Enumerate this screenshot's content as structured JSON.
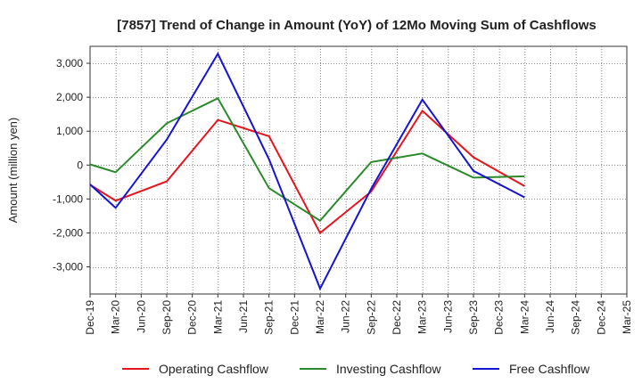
{
  "chart_data": {
    "type": "line",
    "title": "[7857]  Trend of Change in Amount (YoY) of 12Mo Moving Sum of Cashflows",
    "xlabel": "",
    "ylabel": "Amount (million yen)",
    "ylim": [
      -3800,
      3500
    ],
    "yticks": [
      3000,
      2000,
      1000,
      0,
      -1000,
      -2000,
      -3000
    ],
    "ytick_labels": [
      "3,000",
      "2,000",
      "1,000",
      "0",
      "-1,000",
      "-2,000",
      "-3,000"
    ],
    "categories": [
      "Dec-19",
      "Mar-20",
      "Jun-20",
      "Sep-20",
      "Dec-20",
      "Mar-21",
      "Jun-21",
      "Sep-21",
      "Dec-21",
      "Mar-22",
      "Jun-22",
      "Sep-22",
      "Dec-22",
      "Mar-23",
      "Jun-23",
      "Sep-23",
      "Dec-23",
      "Mar-24",
      "Jun-24",
      "Sep-24",
      "Dec-24",
      "Mar-25"
    ],
    "grid": true,
    "legend_position": "bottom",
    "series": [
      {
        "name": "Operating Cashflow",
        "color": "#e8141c",
        "values": [
          -580,
          -1050,
          null,
          -480,
          null,
          1330,
          null,
          850,
          null,
          -2000,
          null,
          -780,
          null,
          1600,
          null,
          230,
          null,
          -620,
          null,
          null,
          null,
          null
        ]
      },
      {
        "name": "Investing Cashflow",
        "color": "#2a8a2a",
        "values": [
          20,
          -210,
          null,
          1230,
          null,
          1970,
          null,
          -680,
          null,
          -1640,
          null,
          90,
          null,
          340,
          null,
          -370,
          null,
          -330,
          null,
          null,
          null,
          null
        ]
      },
      {
        "name": "Free Cashflow",
        "color": "#1414d2",
        "values": [
          -570,
          -1260,
          null,
          750,
          null,
          3280,
          null,
          170,
          null,
          -3640,
          null,
          -700,
          null,
          1930,
          null,
          -170,
          null,
          -950,
          null,
          null,
          null,
          null
        ]
      }
    ]
  }
}
